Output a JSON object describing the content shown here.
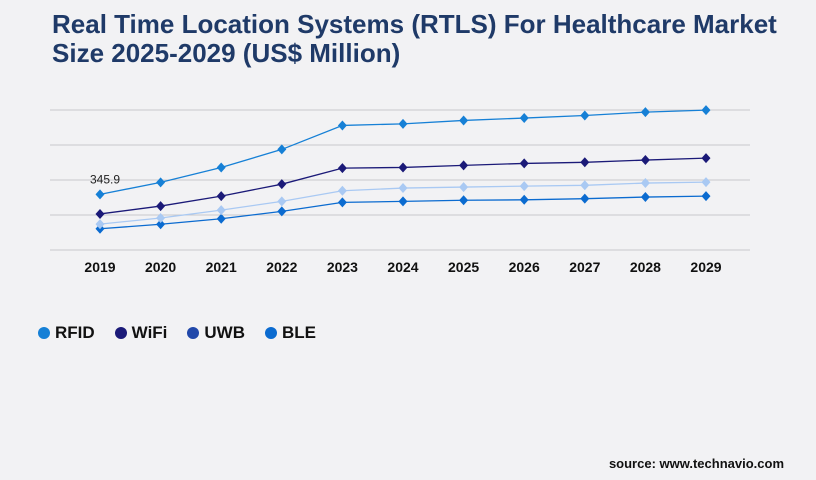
{
  "chart_data": {
    "type": "line",
    "title": "Real Time Location Systems (RTLS) For Healthcare Market Size 2025-2029 (US$ Million)",
    "categories": [
      "2019",
      "2020",
      "2021",
      "2022",
      "2023",
      "2024",
      "2025",
      "2026",
      "2027",
      "2028",
      "2029"
    ],
    "ylim": [
      0,
      870
    ],
    "grid": true,
    "legend_placement": "bottom-left",
    "annotations": [
      {
        "series": "RFID",
        "x": "2019",
        "label": "345.9"
      }
    ],
    "series": [
      {
        "name": "RFID",
        "color": "#1680d6",
        "legend_color": "#1680d6",
        "values": [
          345.9,
          420,
          513,
          625,
          774,
          784,
          805,
          820,
          836,
          857,
          869
        ]
      },
      {
        "name": "WiFi",
        "color": "#1b1a78",
        "legend_color": "#1b1a78",
        "values": [
          224,
          273,
          335,
          409,
          509,
          513,
          526,
          538,
          545,
          559,
          571
        ]
      },
      {
        "name": "UWB",
        "color": "#a9c9f3",
        "legend_color": "#2148aa",
        "values": [
          161,
          199,
          248,
          302,
          368,
          385,
          391,
          397,
          402,
          416,
          422
        ]
      },
      {
        "name": "BLE",
        "color": "#0b6bd0",
        "legend_color": "#0b6bd0",
        "values": [
          132,
          160,
          194,
          240,
          296,
          302,
          309,
          312,
          319,
          329,
          335
        ]
      }
    ]
  },
  "source": "source: www.technavio.com"
}
